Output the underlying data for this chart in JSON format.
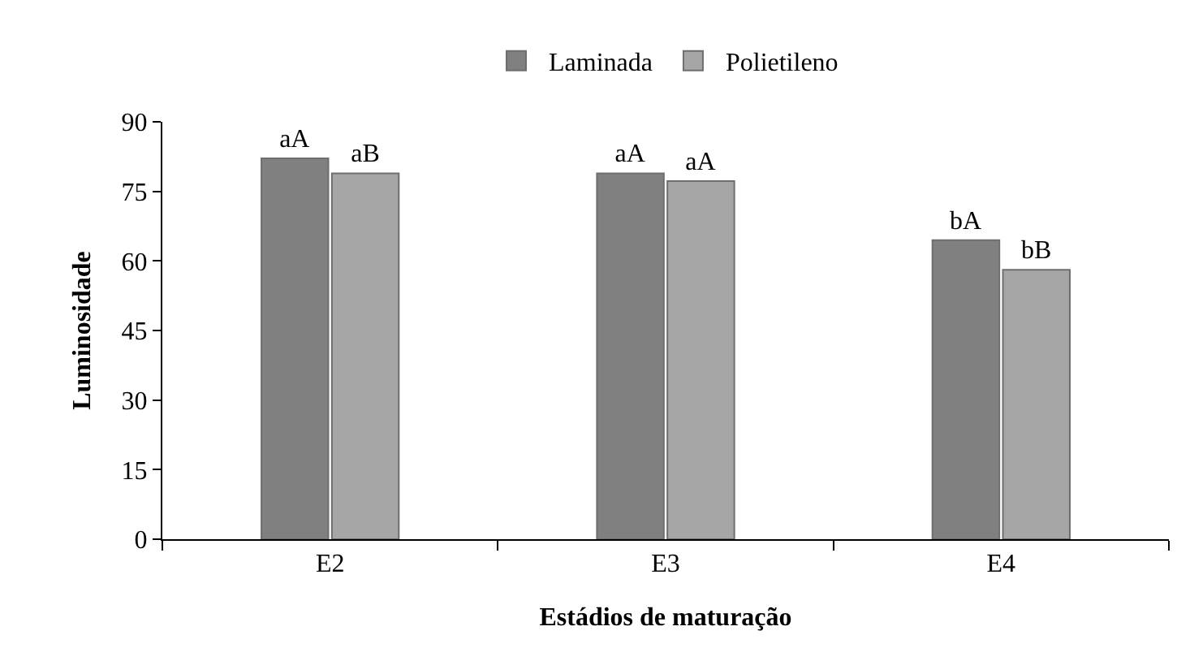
{
  "chart_data": {
    "type": "bar",
    "xlabel": "Estádios de maturação",
    "ylabel": "Luminosidade",
    "categories": [
      "E2",
      "E3",
      "E4"
    ],
    "series": [
      {
        "name": "Laminada",
        "color": "#808080",
        "values": [
          82.1,
          78.9,
          64.5
        ],
        "value_labels": [
          "aA",
          "aA",
          "bA"
        ]
      },
      {
        "name": "Polietileno",
        "color": "#a6a6a6",
        "values": [
          78.9,
          77.2,
          58.1
        ],
        "value_labels": [
          "aB",
          "aA",
          "bB"
        ]
      }
    ],
    "ylim": [
      0,
      90
    ],
    "yticks": [
      0,
      15,
      30,
      45,
      60,
      75,
      90
    ],
    "grid": false,
    "legend": "top"
  }
}
